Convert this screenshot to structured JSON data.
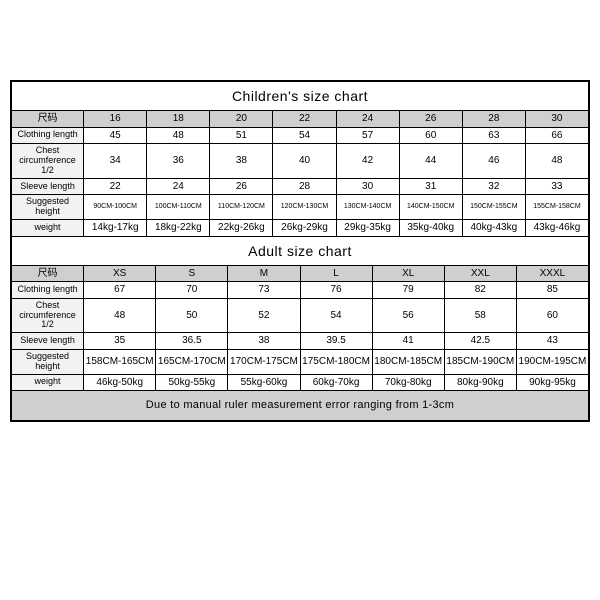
{
  "colors": {
    "border": "#000000",
    "bg": "#ffffff",
    "header_bg": "#cfcfcf",
    "label_bg": "#f2f2f2",
    "note_bg": "#cfcfcf"
  },
  "child": {
    "title": "Children's size chart",
    "size_label": "尺码",
    "sizes": [
      "16",
      "18",
      "20",
      "22",
      "24",
      "26",
      "28",
      "30"
    ],
    "rows": [
      {
        "label": "Clothing length",
        "cells": [
          "45",
          "48",
          "51",
          "54",
          "57",
          "60",
          "63",
          "66"
        ]
      },
      {
        "label": "Chest circumference 1/2",
        "cells": [
          "34",
          "36",
          "38",
          "40",
          "42",
          "44",
          "46",
          "48"
        ]
      },
      {
        "label": "Sleeve length",
        "cells": [
          "22",
          "24",
          "26",
          "28",
          "30",
          "31",
          "32",
          "33"
        ]
      },
      {
        "label": "Suggested height",
        "tiny": true,
        "cells": [
          "90CM-100CM",
          "100CM-110CM",
          "110CM-120CM",
          "120CM-130CM",
          "130CM-140CM",
          "140CM-150CM",
          "150CM-155CM",
          "155CM-158CM"
        ]
      },
      {
        "label": "weight",
        "cells": [
          "14kg-17kg",
          "18kg-22kg",
          "22kg-26kg",
          "26kg-29kg",
          "29kg-35kg",
          "35kg-40kg",
          "40kg-43kg",
          "43kg-46kg"
        ]
      }
    ]
  },
  "adult": {
    "title": "Adult size chart",
    "size_label": "尺码",
    "sizes": [
      "XS",
      "S",
      "M",
      "L",
      "XL",
      "XXL",
      "XXXL"
    ],
    "rows": [
      {
        "label": "Clothing length",
        "cells": [
          "67",
          "70",
          "73",
          "76",
          "79",
          "82",
          "85"
        ]
      },
      {
        "label": "Chest circumference 1/2",
        "cells": [
          "48",
          "50",
          "52",
          "54",
          "56",
          "58",
          "60"
        ]
      },
      {
        "label": "Sleeve length",
        "cells": [
          "35",
          "36.5",
          "38",
          "39.5",
          "41",
          "42.5",
          "43"
        ]
      },
      {
        "label": "Suggested height",
        "cells": [
          "158CM-165CM",
          "165CM-170CM",
          "170CM-175CM",
          "175CM-180CM",
          "180CM-185CM",
          "185CM-190CM",
          "190CM-195CM"
        ]
      },
      {
        "label": "weight",
        "cells": [
          "46kg-50kg",
          "50kg-55kg",
          "55kg-60kg",
          "60kg-70kg",
          "70kg-80kg",
          "80kg-90kg",
          "90kg-95kg"
        ]
      }
    ]
  },
  "note": "Due to manual ruler measurement error ranging from 1-3cm"
}
